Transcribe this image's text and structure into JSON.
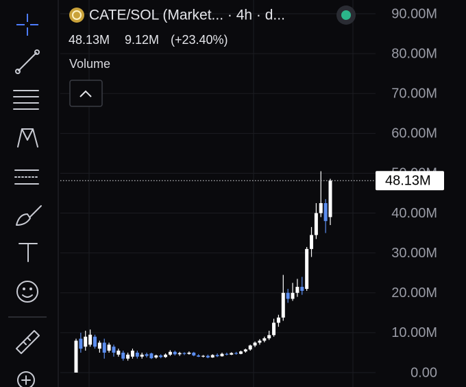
{
  "chart_data": {
    "type": "candlestick",
    "title": "CATE/SOL (Market...  · 4h · d...",
    "stats": [
      "48.13M",
      "9.12M",
      "(+23.40%)"
    ],
    "pane_label": "Volume",
    "up_color": "#ffffff",
    "down_color": "#5b8def",
    "grid": true,
    "ylim": [
      0,
      90
    ],
    "yticks": [
      {
        "value": 0,
        "label": "0.00"
      },
      {
        "value": 10,
        "label": "10.00M"
      },
      {
        "value": 20,
        "label": "20.00M"
      },
      {
        "value": 30,
        "label": "30.00M"
      },
      {
        "value": 40,
        "label": "40.00M"
      },
      {
        "value": 50,
        "label": "50.00M"
      },
      {
        "value": 60,
        "label": "60.00M"
      },
      {
        "value": 70,
        "label": "70.00M"
      },
      {
        "value": 80,
        "label": "80.00M"
      },
      {
        "value": 90,
        "label": "90.00M"
      }
    ],
    "last_price": {
      "value": 48.13,
      "label": "48.13M"
    },
    "open": [
      0,
      8.5,
      6.5,
      7,
      9,
      6,
      7.5,
      5.5,
      6.5,
      4.5,
      5,
      3.5,
      4,
      5,
      4,
      4.6,
      4.8,
      3.8,
      4.3,
      3.9,
      4.5,
      5.2,
      4.6,
      4.9,
      4.7,
      5.0,
      4.3,
      4.0,
      4.2,
      3.8,
      4.4,
      4.1,
      4.7,
      4.5,
      4.9,
      4.7,
      5.3,
      5.8,
      6.8,
      7.5,
      8.0,
      8.6,
      9.4,
      12.5,
      13.8,
      20.0,
      18.5,
      20.0,
      21.5,
      21.0,
      31.0,
      34.5,
      40.0,
      42.5,
      39.0
    ],
    "high": [
      8.5,
      10,
      10.5,
      10.8,
      9.5,
      8,
      8.5,
      7.5,
      7,
      6,
      5.5,
      5,
      6,
      5.5,
      5,
      5,
      5,
      4.5,
      4.6,
      4.8,
      5.6,
      5.5,
      5.2,
      5.1,
      5.3,
      5.2,
      4.6,
      4.4,
      4.5,
      4.6,
      4.8,
      5.0,
      5.0,
      5.1,
      5.2,
      5.5,
      6.0,
      7.0,
      7.8,
      8.4,
      9.0,
      10.5,
      13.5,
      14.5,
      24.5,
      21.0,
      22.5,
      23.5,
      24.0,
      31.5,
      36.5,
      42.5,
      50.5,
      43.5,
      48.6
    ],
    "low": [
      0,
      5,
      5.5,
      6.5,
      6,
      5,
      3.5,
      5,
      4,
      4,
      3,
      3,
      3.5,
      3.5,
      3.5,
      3.8,
      3.4,
      3.5,
      3.6,
      3.7,
      4.2,
      4.3,
      4.2,
      4.4,
      4.5,
      4.1,
      3.9,
      3.8,
      3.6,
      3.7,
      3.9,
      4.0,
      4.3,
      4.4,
      4.5,
      4.6,
      5.0,
      5.5,
      6.4,
      7.0,
      7.6,
      8.2,
      9.0,
      11.5,
      13.0,
      17.5,
      18.0,
      19.0,
      19.5,
      20.5,
      29.0,
      33.5,
      39.0,
      35.0,
      37.0
    ],
    "close": [
      8,
      6,
      9,
      9.5,
      6.5,
      7.5,
      5,
      7,
      5,
      5.5,
      3.5,
      4.5,
      5.5,
      4,
      4.5,
      4.2,
      3.6,
      4.3,
      3.9,
      4.5,
      5.2,
      4.6,
      4.9,
      4.7,
      5.0,
      4.3,
      4.0,
      4.2,
      3.8,
      4.4,
      4.1,
      4.7,
      4.5,
      4.9,
      4.7,
      5.3,
      5.8,
      6.8,
      7.5,
      8.0,
      8.6,
      9.4,
      12.5,
      13.8,
      20.0,
      18.5,
      20.0,
      21.5,
      20.5,
      31.0,
      34.5,
      40.0,
      42.5,
      38.0,
      48.13
    ]
  }
}
